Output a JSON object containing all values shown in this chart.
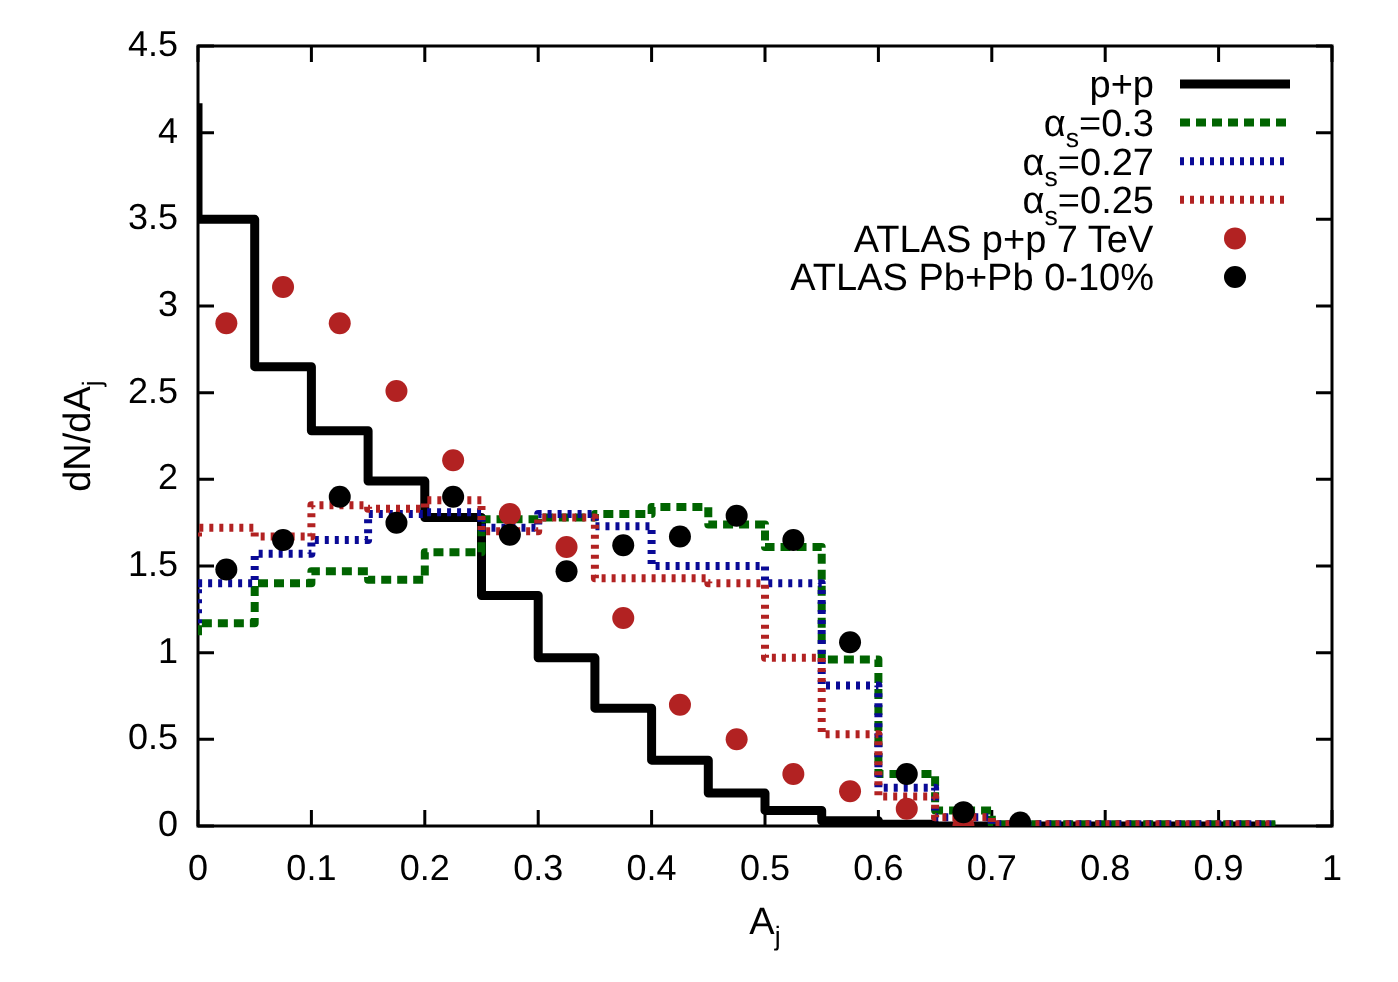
{
  "chart_data": {
    "type": "step",
    "xlabel": "A$_{j}$",
    "ylabel": "dN/dA$_{j}$",
    "x": [
      0,
      0.05,
      0.1,
      0.15,
      0.2,
      0.25,
      0.3,
      0.35,
      0.4,
      0.45,
      0.5,
      0.55,
      0.6,
      0.65,
      0.7,
      0.75,
      0.8,
      0.85,
      0.9,
      0.95
    ],
    "xlim": [
      0,
      1
    ],
    "ylim": [
      0,
      4.5
    ],
    "xticks": [
      0,
      0.1,
      0.2,
      0.3,
      0.4,
      0.5,
      0.6,
      0.7,
      0.8,
      0.9,
      1
    ],
    "yticks": [
      0,
      0.5,
      1,
      1.5,
      2,
      2.5,
      3,
      3.5,
      4,
      4.5
    ],
    "legend": "top right",
    "series": [
      {
        "name": "p+p",
        "color": "#000000",
        "line_style": "solid",
        "values": [
          4.17,
          3.5,
          2.65,
          2.28,
          1.99,
          1.78,
          1.33,
          0.97,
          0.68,
          0.38,
          0.19,
          0.09,
          0.03,
          0.01,
          0,
          0,
          0,
          0,
          0,
          0
        ]
      },
      {
        "name": "α$_{s}$=0.3",
        "color": "#006400",
        "line_style": "dashed",
        "values": [
          1.1,
          1.17,
          1.4,
          1.47,
          1.42,
          1.58,
          1.77,
          1.78,
          1.8,
          1.84,
          1.74,
          1.61,
          0.96,
          0.3,
          0.09,
          0.01,
          0.01,
          0.01,
          0.01,
          0.01
        ]
      },
      {
        "name": "α$_{s}$=0.27",
        "color": "#0a0a96",
        "line_style": "dotted",
        "values": [
          1.17,
          1.4,
          1.57,
          1.65,
          1.8,
          1.81,
          1.72,
          1.8,
          1.73,
          1.5,
          1.5,
          1.4,
          0.81,
          0.22,
          0.05,
          0.01,
          0.01,
          0.01,
          0.01,
          0.01
        ]
      },
      {
        "name": "α$_{s}$=0.25",
        "color": "#b22222",
        "line_style": "dotted",
        "values": [
          1.67,
          1.72,
          1.67,
          1.85,
          1.83,
          1.88,
          1.7,
          1.78,
          1.43,
          1.43,
          1.4,
          0.97,
          0.53,
          0.17,
          0.05,
          0.01,
          0.01,
          0.01,
          0.01,
          0.01
        ]
      },
      {
        "name": "ATLAS p+p 7 TeV",
        "type": "scatter",
        "marker": "circle",
        "color": "#b22222",
        "x": [
          0.025,
          0.075,
          0.125,
          0.175,
          0.225,
          0.275,
          0.325,
          0.375,
          0.425,
          0.475,
          0.525,
          0.575,
          0.625,
          0.675
        ],
        "values": [
          2.9,
          3.11,
          2.9,
          2.51,
          2.11,
          1.8,
          1.61,
          1.2,
          0.7,
          0.5,
          0.3,
          0.2,
          0.1,
          0
        ]
      },
      {
        "name": "ATLAS Pb+Pb 0-10%",
        "type": "scatter",
        "marker": "circle",
        "color": "#000000",
        "x": [
          0.025,
          0.075,
          0.125,
          0.175,
          0.225,
          0.275,
          0.325,
          0.375,
          0.425,
          0.475,
          0.525,
          0.575,
          0.625,
          0.675,
          0.725
        ],
        "values": [
          1.48,
          1.65,
          1.9,
          1.75,
          1.9,
          1.68,
          1.47,
          1.62,
          1.67,
          1.79,
          1.65,
          1.06,
          0.3,
          0.08,
          0.02
        ]
      }
    ]
  }
}
